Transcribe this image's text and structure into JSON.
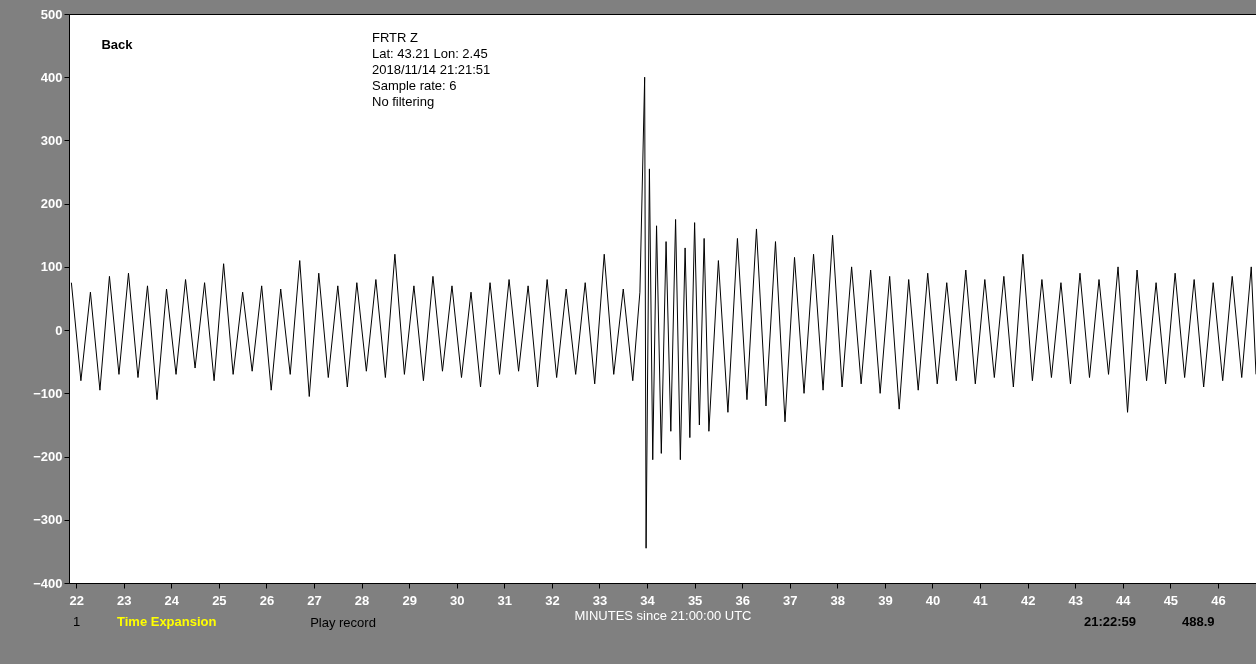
{
  "chart_data": {
    "type": "line",
    "xlabel": "MINUTES since 21:00:00 UTC",
    "annotations": [
      "FRTR  Z",
      "Lat: 43.21 Lon: 2.45",
      "2018/11/14 21:21:51",
      "Sample rate: 6",
      "No filtering",
      "Back",
      "1",
      "Time Expansion",
      "Play record",
      "21:22:59",
      "488.9"
    ],
    "xlim": [
      21.85,
      46.8
    ],
    "xticks": [
      22,
      23,
      24,
      25,
      26,
      27,
      28,
      29,
      30,
      31,
      32,
      33,
      34,
      35,
      36,
      37,
      38,
      39,
      40,
      41,
      42,
      43,
      44,
      45,
      46
    ],
    "ylim": [
      -400,
      500
    ],
    "yticks": [
      -400,
      -300,
      -200,
      -100,
      0,
      100,
      200,
      300,
      400,
      500
    ],
    "grid": false,
    "marker": "none",
    "line_style": "solid",
    "series": [
      {
        "color": "#000000",
        "x": [
          21.9,
          22.1,
          22.3,
          22.5,
          22.7,
          22.9,
          23.1,
          23.3,
          23.5,
          23.7,
          23.9,
          24.1,
          24.3,
          24.5,
          24.7,
          24.9,
          25.1,
          25.3,
          25.5,
          25.7,
          25.9,
          26.1,
          26.3,
          26.5,
          26.7,
          26.9,
          27.1,
          27.3,
          27.5,
          27.7,
          27.9,
          28.1,
          28.3,
          28.5,
          28.7,
          28.9,
          29.1,
          29.3,
          29.5,
          29.7,
          29.9,
          30.1,
          30.3,
          30.5,
          30.7,
          30.9,
          31.1,
          31.3,
          31.5,
          31.7,
          31.9,
          32.1,
          32.3,
          32.5,
          32.7,
          32.9,
          33.1,
          33.3,
          33.5,
          33.7,
          33.85,
          33.95,
          33.98,
          34.05,
          34.12,
          34.2,
          34.3,
          34.4,
          34.5,
          34.6,
          34.7,
          34.8,
          34.9,
          35.0,
          35.1,
          35.2,
          35.3,
          35.5,
          35.7,
          35.9,
          36.1,
          36.3,
          36.5,
          36.7,
          36.9,
          37.1,
          37.3,
          37.5,
          37.7,
          37.9,
          38.1,
          38.3,
          38.5,
          38.7,
          38.9,
          39.1,
          39.3,
          39.5,
          39.7,
          39.9,
          40.1,
          40.3,
          40.5,
          40.7,
          40.9,
          41.1,
          41.3,
          41.5,
          41.7,
          41.9,
          42.1,
          42.3,
          42.5,
          42.7,
          42.9,
          43.1,
          43.3,
          43.5,
          43.7,
          43.9,
          44.1,
          44.3,
          44.5,
          44.7,
          44.9,
          45.1,
          45.3,
          45.5,
          45.7,
          45.9,
          46.1,
          46.3,
          46.5,
          46.7,
          46.8
        ],
        "values": [
          75,
          -80,
          60,
          -95,
          85,
          -70,
          90,
          -75,
          70,
          -110,
          65,
          -70,
          80,
          -60,
          75,
          -80,
          105,
          -70,
          60,
          -65,
          70,
          -95,
          65,
          -70,
          110,
          -105,
          90,
          -75,
          70,
          -90,
          75,
          -65,
          80,
          -75,
          120,
          -70,
          70,
          -80,
          85,
          -65,
          70,
          -75,
          60,
          -90,
          75,
          -70,
          80,
          -65,
          70,
          -90,
          80,
          -75,
          65,
          -70,
          75,
          -85,
          120,
          -70,
          65,
          -80,
          60,
          400,
          -345,
          255,
          -205,
          165,
          -195,
          140,
          -160,
          175,
          -205,
          130,
          -170,
          170,
          -150,
          145,
          -160,
          110,
          -130,
          145,
          -110,
          160,
          -120,
          140,
          -145,
          115,
          -100,
          120,
          -95,
          150,
          -90,
          100,
          -85,
          95,
          -100,
          85,
          -125,
          80,
          -95,
          90,
          -85,
          75,
          -80,
          95,
          -85,
          80,
          -75,
          85,
          -90,
          120,
          -80,
          80,
          -75,
          75,
          -85,
          90,
          -75,
          80,
          -70,
          100,
          -130,
          95,
          -80,
          75,
          -85,
          90,
          -75,
          80,
          -90,
          75,
          -80,
          85,
          -75,
          100,
          -70
        ]
      }
    ]
  }
}
